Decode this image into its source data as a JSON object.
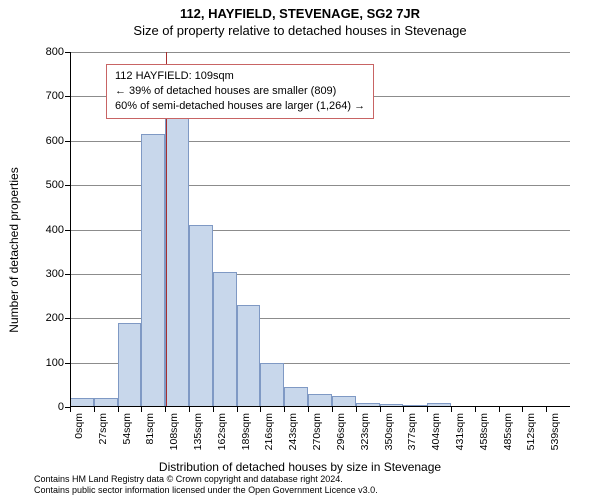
{
  "title": "112, HAYFIELD, STEVENAGE, SG2 7JR",
  "subtitle": "Size of property relative to detached houses in Stevenage",
  "y_axis_title": "Number of detached properties",
  "x_axis_title": "Distribution of detached houses by size in Stevenage",
  "footer_line1": "Contains HM Land Registry data © Crown copyright and database right 2024.",
  "footer_line2": "Contains public sector information licensed under the Open Government Licence v3.0.",
  "legend": {
    "line1": "112 HAYFIELD: 109sqm",
    "line2": "← 39% of detached houses are smaller (809)",
    "line3": "60% of semi-detached houses are larger (1,264) →",
    "border_color": "#c86464"
  },
  "chart": {
    "ymax": 800,
    "y_ticks": [
      0,
      100,
      200,
      300,
      400,
      500,
      600,
      700,
      800
    ],
    "x_tick_step": 27,
    "x_tick_suffix": "sqm",
    "x_tick_count": 21,
    "bar_fill": "#c8d7eb",
    "bar_border": "#7f99c4",
    "grid_color": "#808080",
    "background": "#ffffff",
    "vline": {
      "x_index": 4.04,
      "color": "#a62e2e"
    },
    "values": [
      20,
      20,
      190,
      615,
      670,
      410,
      305,
      230,
      100,
      45,
      30,
      25,
      10,
      6,
      4,
      10,
      0,
      0,
      0,
      0,
      0
    ],
    "categories": [
      "0sqm",
      "27sqm",
      "54sqm",
      "81sqm",
      "108sqm",
      "135sqm",
      "162sqm",
      "189sqm",
      "216sqm",
      "243sqm",
      "270sqm",
      "296sqm",
      "323sqm",
      "350sqm",
      "377sqm",
      "404sqm",
      "431sqm",
      "458sqm",
      "485sqm",
      "512sqm",
      "539sqm"
    ]
  }
}
